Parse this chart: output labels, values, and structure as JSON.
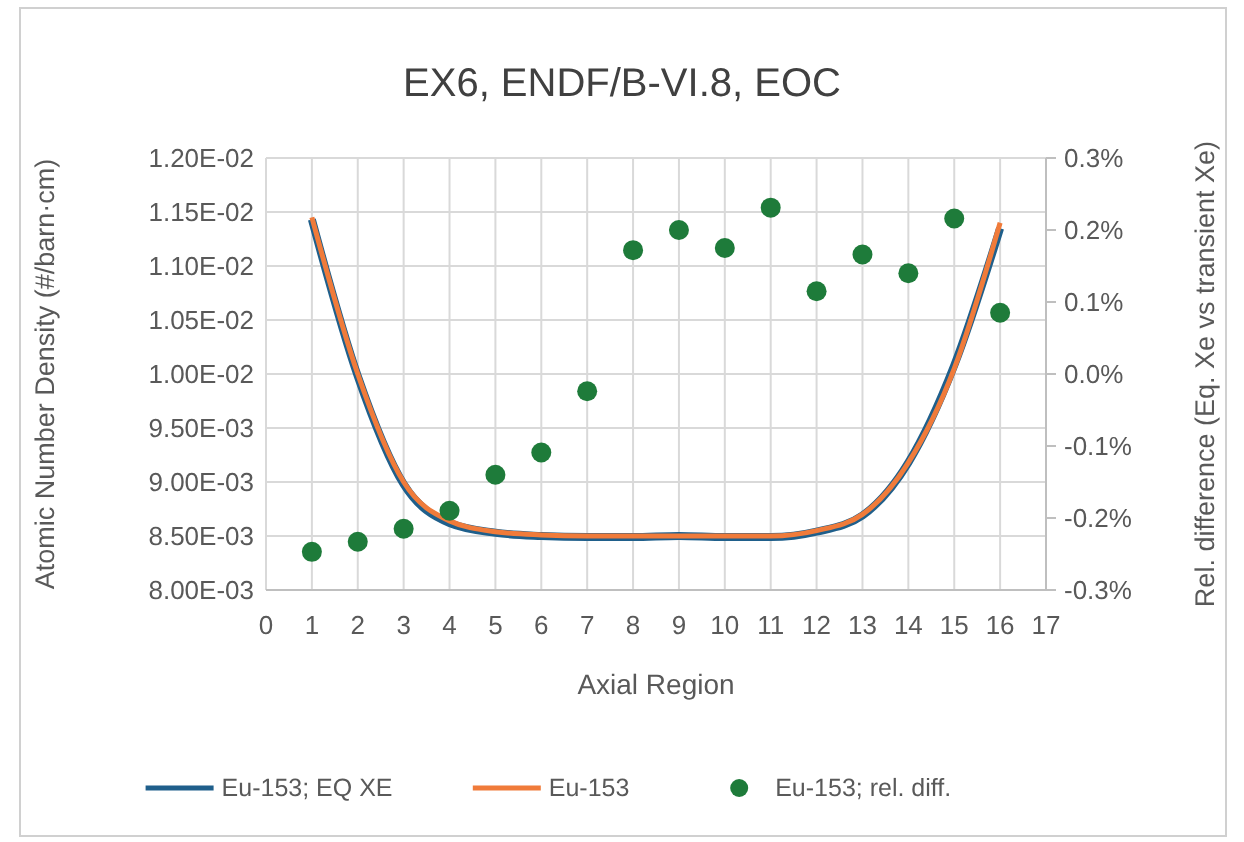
{
  "chart_data": {
    "type": "line",
    "title": "EX6, ENDF/B-VI.8, EOC",
    "xlabel": "Axial Region",
    "ylabel": "Atomic Number Density (#/barn·cm)",
    "y2label": "Rel. difference (Eq. Xe vs transient Xe)",
    "x": [
      1,
      2,
      3,
      4,
      5,
      6,
      7,
      8,
      9,
      10,
      11,
      12,
      13,
      14,
      15,
      16
    ],
    "xlim": [
      0,
      17
    ],
    "xticks": [
      0,
      1,
      2,
      3,
      4,
      5,
      6,
      7,
      8,
      9,
      10,
      11,
      12,
      13,
      14,
      15,
      16,
      17
    ],
    "ylim": [
      0.008,
      0.012
    ],
    "yticks": [
      {
        "value": 0.008,
        "label": "8.00E-03"
      },
      {
        "value": 0.0085,
        "label": "8.50E-03"
      },
      {
        "value": 0.009,
        "label": "9.00E-03"
      },
      {
        "value": 0.0095,
        "label": "9.50E-03"
      },
      {
        "value": 0.01,
        "label": "1.00E-02"
      },
      {
        "value": 0.0105,
        "label": "1.05E-02"
      },
      {
        "value": 0.011,
        "label": "1.10E-02"
      },
      {
        "value": 0.0115,
        "label": "1.15E-02"
      },
      {
        "value": 0.012,
        "label": "1.20E-02"
      }
    ],
    "y2lim": [
      -0.3,
      0.3
    ],
    "y2ticks": [
      {
        "value": -0.3,
        "label": "-0.3%"
      },
      {
        "value": -0.2,
        "label": "-0.2%"
      },
      {
        "value": -0.1,
        "label": "-0.1%"
      },
      {
        "value": 0,
        "label": "0.0%"
      },
      {
        "value": 0.1,
        "label": "0.1%"
      },
      {
        "value": 0.2,
        "label": "0.2%"
      },
      {
        "value": 0.3,
        "label": "0.3%"
      }
    ],
    "grid": true,
    "legend": "bottom",
    "series": [
      {
        "name": "Eu-153; EQ XE",
        "color": "#1f5f8b",
        "values": [
          0.01143,
          0.00998,
          0.00898,
          0.00862,
          0.00853,
          0.0085,
          0.00849,
          0.00849,
          0.0085,
          0.00849,
          0.00849,
          0.00854,
          0.00869,
          0.00918,
          0.01008,
          0.01135
        ]
      },
      {
        "name": "Eu-153",
        "color": "#f07b3a",
        "values": [
          0.01145,
          0.01,
          0.009,
          0.00864,
          0.00854,
          0.00851,
          0.0085,
          0.0085,
          0.0085,
          0.0085,
          0.0085,
          0.00855,
          0.0087,
          0.00918,
          0.01005,
          0.0114
        ]
      },
      {
        "name": "Eu-153; rel. diff.",
        "type": "scatter",
        "axis": "y2",
        "marker": "circle",
        "color": "#1e7b3a",
        "values": [
          -0.247,
          -0.233,
          -0.215,
          -0.19,
          -0.14,
          -0.109,
          -0.024,
          0.172,
          0.2,
          0.175,
          0.231,
          0.115,
          0.166,
          0.14,
          0.216,
          0.085
        ]
      }
    ]
  }
}
